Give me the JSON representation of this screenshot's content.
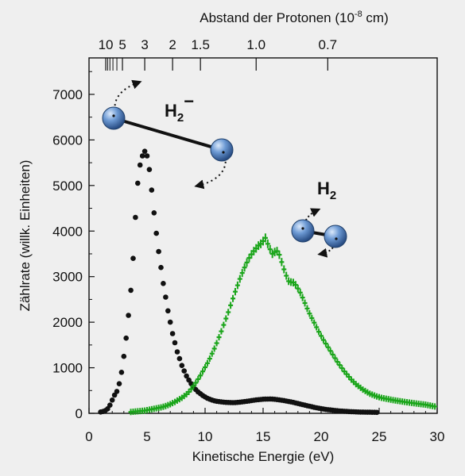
{
  "chart_data": {
    "type": "scatter",
    "xlabel": "Kinetische Energie (eV)",
    "ylabel": "Zählrate (willk. Einheiten)",
    "top_axis_label": "Abstand der Protonen (10-8 cm)",
    "top_axis_label_main": "Abstand der Protonen (10",
    "top_axis_label_exp": "-8",
    "top_axis_label_tail": " cm)",
    "xlim": [
      0,
      30
    ],
    "ylim": [
      0,
      7800
    ],
    "x_ticks": [
      0,
      5,
      10,
      15,
      20,
      25,
      30
    ],
    "y_ticks": [
      0,
      1000,
      2000,
      3000,
      4000,
      5000,
      6000,
      7000
    ],
    "top_ticks": [
      {
        "label": "10",
        "energy": 1.44
      },
      {
        "label": "5",
        "energy": 2.88
      },
      {
        "label": "3",
        "energy": 4.8
      },
      {
        "label": "2",
        "energy": 7.2
      },
      {
        "label": "1.5",
        "energy": 9.6
      },
      {
        "label": "1.0",
        "energy": 14.4
      },
      {
        "label": "0.7",
        "energy": 20.57
      }
    ],
    "top_minor_ticks": [
      1.6,
      1.8,
      2.06,
      2.4
    ],
    "grid": false,
    "series": [
      {
        "name": "H2-",
        "color": "#111111",
        "marker": "circle",
        "points": [
          [
            1.0,
            30
          ],
          [
            1.2,
            40
          ],
          [
            1.4,
            60
          ],
          [
            1.6,
            100
          ],
          [
            1.8,
            180
          ],
          [
            2.0,
            290
          ],
          [
            2.2,
            400
          ],
          [
            2.4,
            480
          ],
          [
            2.6,
            650
          ],
          [
            2.8,
            900
          ],
          [
            3.0,
            1250
          ],
          [
            3.2,
            1650
          ],
          [
            3.4,
            2150
          ],
          [
            3.6,
            2700
          ],
          [
            3.8,
            3400
          ],
          [
            4.0,
            4300
          ],
          [
            4.2,
            5050
          ],
          [
            4.4,
            5450
          ],
          [
            4.6,
            5650
          ],
          [
            4.8,
            5750
          ],
          [
            5.0,
            5650
          ],
          [
            5.2,
            5350
          ],
          [
            5.4,
            4900
          ],
          [
            5.6,
            4400
          ],
          [
            5.8,
            3950
          ],
          [
            6.0,
            3550
          ],
          [
            6.2,
            3200
          ],
          [
            6.4,
            2850
          ],
          [
            6.6,
            2550
          ],
          [
            6.8,
            2250
          ],
          [
            7.0,
            2000
          ],
          [
            7.2,
            1750
          ],
          [
            7.4,
            1550
          ],
          [
            7.6,
            1350
          ],
          [
            7.8,
            1200
          ],
          [
            8.0,
            1050
          ],
          [
            8.2,
            930
          ],
          [
            8.4,
            820
          ],
          [
            8.6,
            730
          ],
          [
            8.8,
            650
          ],
          [
            9.0,
            580
          ],
          [
            9.2,
            520
          ],
          [
            9.4,
            470
          ],
          [
            9.6,
            430
          ],
          [
            9.8,
            390
          ],
          [
            10.0,
            360
          ],
          [
            10.2,
            330
          ],
          [
            10.4,
            310
          ],
          [
            10.6,
            290
          ],
          [
            10.8,
            275
          ],
          [
            11.0,
            265
          ],
          [
            11.2,
            258
          ],
          [
            11.4,
            250
          ],
          [
            11.6,
            245
          ],
          [
            11.8,
            240
          ],
          [
            12.0,
            238
          ],
          [
            12.2,
            236
          ],
          [
            12.4,
            235
          ],
          [
            12.6,
            236
          ],
          [
            12.8,
            240
          ],
          [
            13.0,
            245
          ],
          [
            13.2,
            250
          ],
          [
            13.4,
            258
          ],
          [
            13.6,
            265
          ],
          [
            13.8,
            272
          ],
          [
            14.0,
            280
          ],
          [
            14.2,
            288
          ],
          [
            14.4,
            295
          ],
          [
            14.6,
            300
          ],
          [
            14.8,
            305
          ],
          [
            15.0,
            310
          ],
          [
            15.2,
            312
          ],
          [
            15.4,
            314
          ],
          [
            15.6,
            315
          ],
          [
            15.8,
            312
          ],
          [
            16.0,
            308
          ],
          [
            16.2,
            302
          ],
          [
            16.4,
            295
          ],
          [
            16.6,
            288
          ],
          [
            16.8,
            280
          ],
          [
            17.0,
            270
          ],
          [
            17.2,
            260
          ],
          [
            17.4,
            250
          ],
          [
            17.6,
            240
          ],
          [
            17.8,
            228
          ],
          [
            18.0,
            216
          ],
          [
            18.2,
            204
          ],
          [
            18.4,
            192
          ],
          [
            18.6,
            180
          ],
          [
            18.8,
            168
          ],
          [
            19.0,
            156
          ],
          [
            19.2,
            144
          ],
          [
            19.4,
            132
          ],
          [
            19.6,
            122
          ],
          [
            19.8,
            112
          ],
          [
            20.0,
            102
          ],
          [
            20.2,
            94
          ],
          [
            20.4,
            86
          ],
          [
            20.6,
            80
          ],
          [
            20.8,
            74
          ],
          [
            21.0,
            68
          ],
          [
            21.2,
            62
          ],
          [
            21.4,
            57
          ],
          [
            21.6,
            53
          ],
          [
            21.8,
            49
          ],
          [
            22.0,
            45
          ],
          [
            22.2,
            42
          ],
          [
            22.4,
            39
          ],
          [
            22.6,
            36
          ],
          [
            22.8,
            34
          ],
          [
            23.0,
            32
          ],
          [
            23.2,
            30
          ],
          [
            23.4,
            28
          ],
          [
            23.6,
            27
          ],
          [
            23.8,
            26
          ],
          [
            24.0,
            25
          ],
          [
            24.2,
            24
          ],
          [
            24.4,
            23
          ],
          [
            24.6,
            22
          ],
          [
            24.8,
            21
          ]
        ]
      },
      {
        "name": "H2",
        "color": "#1aa51a",
        "marker": "cross",
        "points": [
          [
            3.6,
            30
          ],
          [
            3.8,
            35
          ],
          [
            4.0,
            40
          ],
          [
            4.2,
            45
          ],
          [
            4.4,
            50
          ],
          [
            4.6,
            55
          ],
          [
            4.8,
            60
          ],
          [
            5.0,
            70
          ],
          [
            5.2,
            80
          ],
          [
            5.4,
            90
          ],
          [
            5.6,
            100
          ],
          [
            5.8,
            110
          ],
          [
            6.0,
            120
          ],
          [
            6.2,
            130
          ],
          [
            6.4,
            145
          ],
          [
            6.6,
            160
          ],
          [
            6.8,
            180
          ],
          [
            7.0,
            200
          ],
          [
            7.2,
            225
          ],
          [
            7.4,
            250
          ],
          [
            7.6,
            280
          ],
          [
            7.8,
            310
          ],
          [
            8.0,
            340
          ],
          [
            8.2,
            380
          ],
          [
            8.4,
            420
          ],
          [
            8.6,
            470
          ],
          [
            8.8,
            530
          ],
          [
            9.0,
            600
          ],
          [
            9.2,
            670
          ],
          [
            9.4,
            750
          ],
          [
            9.6,
            830
          ],
          [
            9.8,
            920
          ],
          [
            10.0,
            1010
          ],
          [
            10.2,
            1100
          ],
          [
            10.4,
            1200
          ],
          [
            10.6,
            1310
          ],
          [
            10.8,
            1420
          ],
          [
            11.0,
            1540
          ],
          [
            11.2,
            1670
          ],
          [
            11.4,
            1800
          ],
          [
            11.6,
            1940
          ],
          [
            11.8,
            2080
          ],
          [
            12.0,
            2220
          ],
          [
            12.2,
            2370
          ],
          [
            12.4,
            2520
          ],
          [
            12.6,
            2670
          ],
          [
            12.8,
            2810
          ],
          [
            13.0,
            2950
          ],
          [
            13.2,
            3080
          ],
          [
            13.4,
            3200
          ],
          [
            13.6,
            3310
          ],
          [
            13.8,
            3410
          ],
          [
            14.0,
            3490
          ],
          [
            14.2,
            3560
          ],
          [
            14.4,
            3620
          ],
          [
            14.6,
            3680
          ],
          [
            14.8,
            3720
          ],
          [
            15.0,
            3780
          ],
          [
            15.2,
            3850
          ],
          [
            15.4,
            3720
          ],
          [
            15.6,
            3600
          ],
          [
            15.8,
            3500
          ],
          [
            16.0,
            3540
          ],
          [
            16.2,
            3560
          ],
          [
            16.4,
            3480
          ],
          [
            16.6,
            3320
          ],
          [
            16.8,
            3160
          ],
          [
            17.0,
            3020
          ],
          [
            17.2,
            2900
          ],
          [
            17.4,
            2880
          ],
          [
            17.6,
            2870
          ],
          [
            17.8,
            2820
          ],
          [
            18.0,
            2740
          ],
          [
            18.2,
            2650
          ],
          [
            18.4,
            2540
          ],
          [
            18.6,
            2420
          ],
          [
            18.8,
            2300
          ],
          [
            19.0,
            2190
          ],
          [
            19.2,
            2090
          ],
          [
            19.4,
            1990
          ],
          [
            19.6,
            1890
          ],
          [
            19.8,
            1790
          ],
          [
            20.0,
            1700
          ],
          [
            20.2,
            1610
          ],
          [
            20.4,
            1530
          ],
          [
            20.6,
            1450
          ],
          [
            20.8,
            1370
          ],
          [
            21.0,
            1290
          ],
          [
            21.2,
            1210
          ],
          [
            21.4,
            1130
          ],
          [
            21.6,
            1060
          ],
          [
            21.8,
            990
          ],
          [
            22.0,
            920
          ],
          [
            22.2,
            860
          ],
          [
            22.4,
            800
          ],
          [
            22.6,
            740
          ],
          [
            22.8,
            690
          ],
          [
            23.0,
            640
          ],
          [
            23.2,
            600
          ],
          [
            23.4,
            560
          ],
          [
            23.6,
            520
          ],
          [
            23.8,
            490
          ],
          [
            24.0,
            460
          ],
          [
            24.2,
            430
          ],
          [
            24.4,
            410
          ],
          [
            24.6,
            390
          ],
          [
            24.8,
            370
          ],
          [
            25.0,
            355
          ],
          [
            25.2,
            340
          ],
          [
            25.4,
            330
          ],
          [
            25.6,
            320
          ],
          [
            25.8,
            310
          ],
          [
            26.0,
            300
          ],
          [
            26.2,
            290
          ],
          [
            26.4,
            282
          ],
          [
            26.6,
            274
          ],
          [
            26.8,
            266
          ],
          [
            27.0,
            258
          ],
          [
            27.2,
            250
          ],
          [
            27.4,
            243
          ],
          [
            27.6,
            236
          ],
          [
            27.8,
            229
          ],
          [
            28.0,
            222
          ],
          [
            28.2,
            215
          ],
          [
            28.4,
            208
          ],
          [
            28.6,
            202
          ],
          [
            28.8,
            196
          ],
          [
            29.0,
            190
          ],
          [
            29.2,
            180
          ],
          [
            29.4,
            170
          ],
          [
            29.6,
            160
          ],
          [
            29.8,
            150
          ]
        ]
      }
    ],
    "annotations": [
      {
        "label": "H2-",
        "label_main": "H",
        "label_sub": "2",
        "label_sup": "−"
      },
      {
        "label": "H2",
        "label_main": "H",
        "label_sub": "2"
      }
    ]
  },
  "style": {
    "background": "#efefef",
    "plot_background": "#efefef",
    "atom_color": "#5b8fd0",
    "atom_highlight": "#d7e7fa",
    "atom_edge": "#1f3f6a"
  }
}
